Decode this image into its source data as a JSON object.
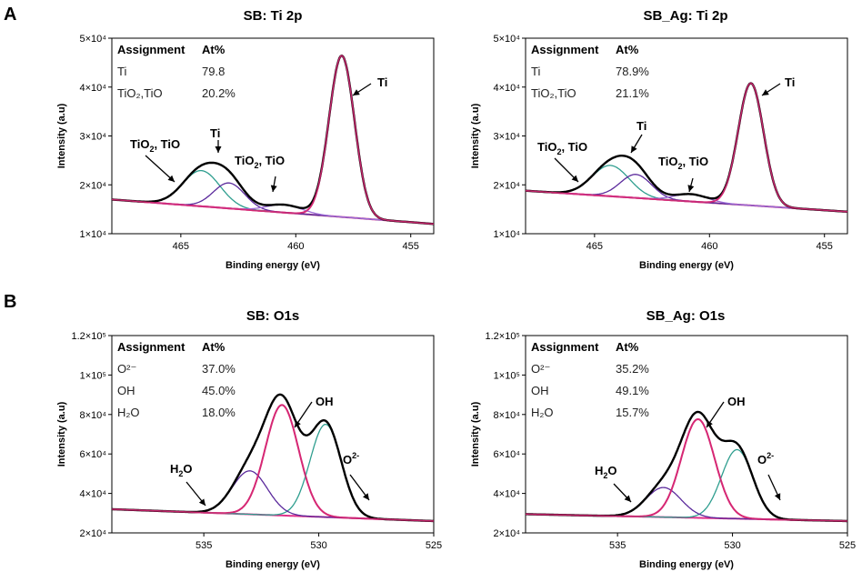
{
  "figure": {
    "panel_a": "A",
    "panel_b": "B"
  },
  "colors": {
    "envelope": "#000000",
    "metal": "#d62874",
    "oxide1": "#2f9e8f",
    "oxide2": "#5b2a9c",
    "oxide3": "#9b6ad6",
    "background": "#e0308a"
  },
  "chart_data": [
    {
      "id": "sb-ti",
      "type": "line",
      "title": "SB: Ti 2p",
      "xlabel": "Binding energy (eV)",
      "ylabel": "Intensity (a.u)",
      "xlim": [
        468,
        454
      ],
      "ylim": [
        10000,
        50000
      ],
      "xticks": [
        "465",
        "460",
        "455"
      ],
      "yticks": [
        "1×10⁴",
        "2×10⁴",
        "3×10⁴",
        "4×10⁴",
        "5×10⁴"
      ],
      "table": {
        "headers": [
          "Assignment",
          "At%"
        ],
        "rows": [
          [
            "Ti",
            "79.8"
          ],
          [
            "TiO₂,TiO",
            "20.2%"
          ]
        ]
      },
      "annotations": [
        {
          "text": "Ti",
          "sub": "",
          "post": ""
        },
        {
          "text": "Ti",
          "sub": "",
          "post": ""
        },
        {
          "text": "TiO",
          "sub": "2",
          "post": ", TiO"
        },
        {
          "text": "TiO",
          "sub": "2",
          "post": ", TiO"
        }
      ],
      "background_line": {
        "x0": 468,
        "y0": 17000,
        "x1": 454,
        "y1": 12000
      },
      "peaks": [
        {
          "name": "Ti 2p3/2 (metal)",
          "center": 458.0,
          "fwhm": 1.3,
          "height": 33000,
          "color_key": "metal"
        },
        {
          "name": "TiO2/TiO",
          "center": 464.1,
          "fwhm": 1.9,
          "height": 7300,
          "color_key": "oxide1"
        },
        {
          "name": "Ti 2p1/2",
          "center": 462.9,
          "fwhm": 1.6,
          "height": 5200,
          "color_key": "oxide2"
        },
        {
          "name": "TiO2/TiO",
          "center": 460.5,
          "fwhm": 1.8,
          "height": 1600,
          "color_key": "oxide3"
        }
      ]
    },
    {
      "id": "sbag-ti",
      "type": "line",
      "title": "SB_Ag: Ti 2p",
      "xlabel": "Binding energy (eV)",
      "ylabel": "Intensity (a.u)",
      "xlim": [
        468,
        454
      ],
      "ylim": [
        10000,
        50000
      ],
      "xticks": [
        "465",
        "460",
        "455"
      ],
      "yticks": [
        "1×10⁴",
        "2×10⁴",
        "3×10⁴",
        "4×10⁴",
        "5×10⁴"
      ],
      "table": {
        "headers": [
          "Assignment",
          "At%"
        ],
        "rows": [
          [
            "Ti",
            "78.9%"
          ],
          [
            "TiO₂,TiO",
            "21.1%"
          ]
        ]
      },
      "annotations": [
        {
          "text": "Ti",
          "sub": "",
          "post": ""
        },
        {
          "text": "Ti",
          "sub": "",
          "post": ""
        },
        {
          "text": "TiO",
          "sub": "2",
          "post": ", TiO"
        },
        {
          "text": "TiO",
          "sub": "2",
          "post": ", TiO"
        }
      ],
      "background_line": {
        "x0": 468,
        "y0": 18800,
        "x1": 454,
        "y1": 14500
      },
      "peaks": [
        {
          "name": "Ti 2p3/2 (metal)",
          "center": 458.2,
          "fwhm": 1.3,
          "height": 25000,
          "color_key": "metal"
        },
        {
          "name": "TiO2/TiO",
          "center": 464.3,
          "fwhm": 1.9,
          "height": 6300,
          "color_key": "oxide1"
        },
        {
          "name": "Ti 2p1/2",
          "center": 463.2,
          "fwhm": 1.6,
          "height": 4800,
          "color_key": "oxide2"
        },
        {
          "name": "TiO2/TiO",
          "center": 460.8,
          "fwhm": 1.7,
          "height": 1500,
          "color_key": "oxide3"
        }
      ]
    },
    {
      "id": "sb-o",
      "type": "line",
      "title": "SB: O1s",
      "xlabel": "Binding energy (eV)",
      "ylabel": "Intensity (a.u)",
      "xlim": [
        539,
        525
      ],
      "ylim": [
        20000,
        120000
      ],
      "xticks": [
        "535",
        "530",
        "525"
      ],
      "yticks": [
        "2×10⁴",
        "4×10⁴",
        "6×10⁴",
        "8×10⁴",
        "1×10⁵",
        "1.2×10⁵"
      ],
      "table": {
        "headers": [
          "Assignment",
          "At%"
        ],
        "rows": [
          [
            "O²⁻",
            "37.0%"
          ],
          [
            "OH",
            "45.0%"
          ],
          [
            "H₂O",
            "18.0%"
          ]
        ]
      },
      "annotations": [
        {
          "text": "OH",
          "sub": "",
          "post": ""
        },
        {
          "text": "O",
          "sup": "2-",
          "post": ""
        },
        {
          "text": "H",
          "sub": "2",
          "post": "O"
        }
      ],
      "background_line": {
        "x0": 539,
        "y0": 32000,
        "x1": 525,
        "y1": 26000
      },
      "peaks": [
        {
          "name": "OH",
          "center": 531.6,
          "fwhm": 1.7,
          "height": 56000,
          "color_key": "metal"
        },
        {
          "name": "O2-",
          "center": 529.7,
          "fwhm": 1.6,
          "height": 47000,
          "color_key": "oxide1"
        },
        {
          "name": "H2O",
          "center": 533.0,
          "fwhm": 1.8,
          "height": 22000,
          "color_key": "oxide2"
        }
      ]
    },
    {
      "id": "sbag-o",
      "type": "line",
      "title": "SB_Ag: O1s",
      "xlabel": "Binding energy (eV)",
      "ylabel": "Intensity (a.u)",
      "xlim": [
        539,
        525
      ],
      "ylim": [
        20000,
        120000
      ],
      "xticks": [
        "535",
        "530",
        "525"
      ],
      "yticks": [
        "2×10⁴",
        "4×10⁴",
        "6×10⁴",
        "8×10⁴",
        "1×10⁵",
        "1.2×10⁵"
      ],
      "table": {
        "headers": [
          "Assignment",
          "At%"
        ],
        "rows": [
          [
            "O²⁻",
            "35.2%"
          ],
          [
            "OH",
            "49.1%"
          ],
          [
            "H₂O",
            "15.7%"
          ]
        ]
      },
      "annotations": [
        {
          "text": "OH",
          "sub": "",
          "post": ""
        },
        {
          "text": "O",
          "sup": "2-",
          "post": ""
        },
        {
          "text": "H",
          "sub": "2",
          "post": "O"
        }
      ],
      "background_line": {
        "x0": 539,
        "y0": 29500,
        "x1": 525,
        "y1": 26000
      },
      "peaks": [
        {
          "name": "OH",
          "center": 531.5,
          "fwhm": 1.7,
          "height": 50000,
          "color_key": "metal"
        },
        {
          "name": "O2-",
          "center": 529.8,
          "fwhm": 1.6,
          "height": 35000,
          "color_key": "oxide1"
        },
        {
          "name": "H2O",
          "center": 533.0,
          "fwhm": 1.8,
          "height": 15000,
          "color_key": "oxide2"
        }
      ]
    }
  ]
}
